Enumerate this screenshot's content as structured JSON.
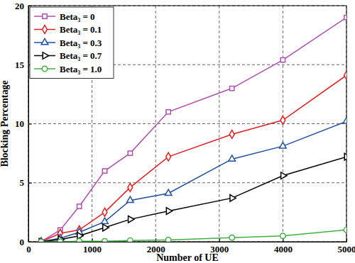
{
  "chart_data": {
    "type": "line",
    "x_label": "Number of UE",
    "y_label": "Blocking Percentage",
    "x": [
      200,
      500,
      800,
      1200,
      1600,
      2200,
      3200,
      4000,
      5000
    ],
    "series": [
      {
        "name": "Beta₃ = 0",
        "color": "#b04fb0",
        "marker": "square",
        "values": [
          0,
          1.0,
          3.0,
          6.0,
          7.5,
          11.0,
          13.0,
          15.4,
          19.0
        ]
      },
      {
        "name": "Beta₃ = 0.1",
        "color": "#e02020",
        "marker": "diamond",
        "values": [
          0,
          0.7,
          1.0,
          2.5,
          4.6,
          7.2,
          9.1,
          10.3,
          14.1
        ]
      },
      {
        "name": "Beta₃ = 0.3",
        "color": "#2050a0",
        "marker": "triangle",
        "values": [
          0,
          0.3,
          0.8,
          1.7,
          3.5,
          4.1,
          7.0,
          8.1,
          10.2
        ]
      },
      {
        "name": "Beta₃ = 0.7",
        "color": "#000000",
        "marker": "triangle-right",
        "values": [
          0,
          0.2,
          0.5,
          1.2,
          1.9,
          2.6,
          3.7,
          5.6,
          7.2
        ]
      },
      {
        "name": "Beta₃ = 1.0",
        "color": "#40b040",
        "marker": "circle",
        "values": [
          0,
          0,
          0.05,
          0.05,
          0.1,
          0.15,
          0.35,
          0.5,
          1.0
        ]
      }
    ],
    "xlim": [
      0,
      5000
    ],
    "xticks": [
      0,
      1000,
      2000,
      3000,
      4000,
      5000
    ],
    "ylim": [
      0,
      20
    ],
    "yticks": [
      0,
      5,
      10,
      15,
      20
    ],
    "grid": true,
    "legend": "top-left"
  }
}
